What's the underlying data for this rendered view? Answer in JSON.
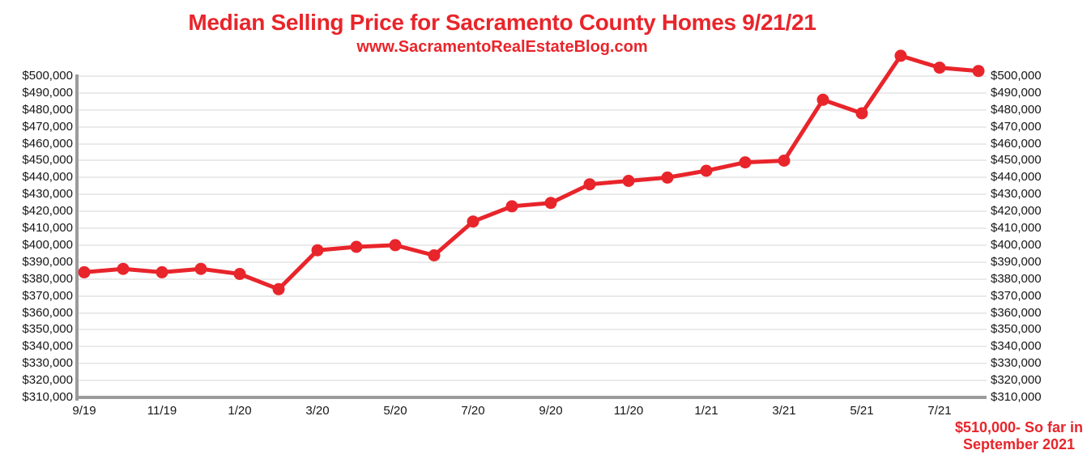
{
  "header": {
    "title": "Median Selling Price for Sacramento County Homes 9/21/21",
    "subtitle": "www.SacramentoRealEstateBlog.com"
  },
  "chart_data": {
    "type": "line",
    "title": "Median Selling Price for Sacramento County Homes 9/21/21",
    "subtitle": "www.SacramentoRealEstateBlog.com",
    "series_name": "Median Selling Price",
    "x": [
      "9/19",
      "10/19",
      "11/19",
      "12/19",
      "1/20",
      "2/20",
      "3/20",
      "4/20",
      "5/20",
      "6/20",
      "7/20",
      "8/20",
      "9/20",
      "10/20",
      "11/20",
      "12/20",
      "1/21",
      "2/21",
      "3/21",
      "4/21",
      "5/21",
      "6/21",
      "7/21",
      "8/21"
    ],
    "values": [
      384000,
      386000,
      384000,
      386000,
      383000,
      374000,
      397000,
      399000,
      400000,
      394000,
      414000,
      423000,
      425000,
      436000,
      438000,
      440000,
      444000,
      449000,
      450000,
      486000,
      478000,
      512000,
      505000,
      503000
    ],
    "x_tick_labels": [
      "9/19",
      "11/19",
      "1/20",
      "3/20",
      "5/20",
      "7/20",
      "9/20",
      "11/20",
      "1/21",
      "3/21",
      "5/21",
      "7/21"
    ],
    "x_tick_every": 2,
    "y_tick_labels_top_to_bottom": [
      "$500,000",
      "$490,000",
      "$480,000",
      "$470,000",
      "$460,000",
      "$450,000",
      "$440,000",
      "$430,000",
      "$420,000",
      "$410,000",
      "$400,000",
      "$390,000",
      "$380,000",
      "$370,000",
      "$360,000",
      "$350,000",
      "$340,000",
      "$330,000",
      "$320,000",
      "$310,000"
    ],
    "ylim": [
      310000,
      500000
    ],
    "y_step": 10000,
    "grid": "horizontal-on",
    "legend": "none",
    "line_color": "#e8252b",
    "marker": "filled-circle",
    "annotation": "$510,000- So far in September 2021"
  },
  "annotation": {
    "line1": "$510,000- So far in",
    "line2": "September 2021"
  },
  "colors": {
    "accent_red": "#e8252b",
    "gridline": "#eaeaea",
    "axis_gray": "#9b9b9b",
    "label_text": "#161616"
  }
}
